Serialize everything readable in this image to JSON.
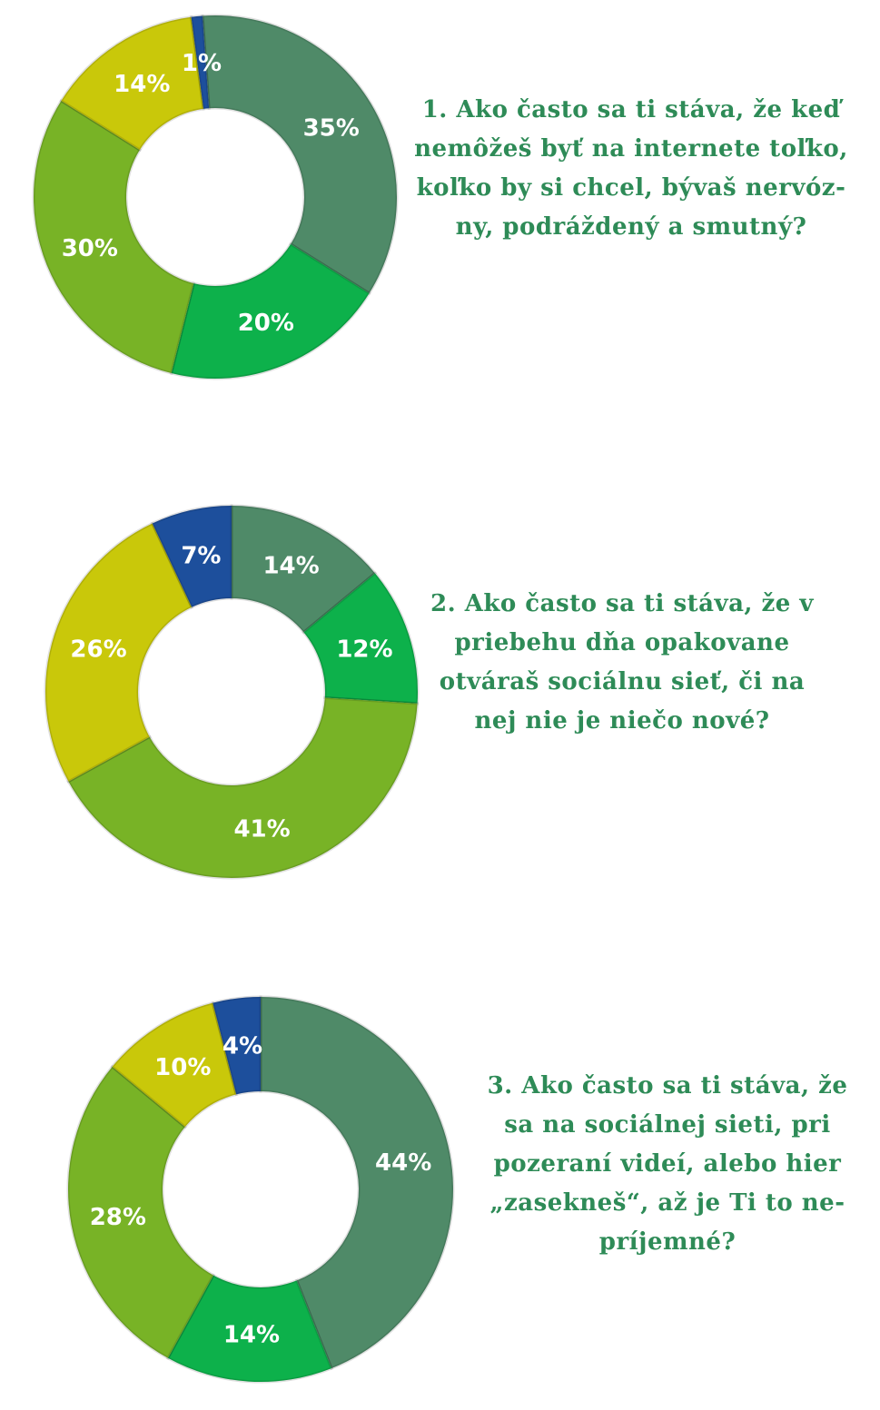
{
  "colors": {
    "dark_green": "#4f8a68",
    "green": "#0db14b",
    "lime": "#78b326",
    "yellow": "#c9c80a",
    "blue": "#1d4f9c",
    "question_text": "#2e8b57"
  },
  "chart_data": [
    {
      "type": "pie",
      "donut": true,
      "question_lines": [
        "1. Ako často sa ti stáva, že keď",
        "nemôžeš byť na internete toľko,",
        "koľko by si chcel, bývaš nervóz-",
        "ny, podráždený a smutný?"
      ],
      "slices": [
        {
          "value": 35,
          "label": "35%",
          "color": "#4f8a68"
        },
        {
          "value": 20,
          "label": "20%",
          "color": "#0db14b"
        },
        {
          "value": 30,
          "label": "30%",
          "color": "#78b326"
        },
        {
          "value": 14,
          "label": "14%",
          "color": "#c9c80a"
        },
        {
          "value": 1,
          "label": "1%",
          "color": "#1d4f9c"
        }
      ]
    },
    {
      "type": "pie",
      "donut": true,
      "question_lines": [
        "2. Ako často sa ti stáva, že v",
        "priebehu dňa opakovane",
        "otváraš sociálnu sieť, či na",
        "nej nie je niečo nové?"
      ],
      "slices": [
        {
          "value": 14,
          "label": "14%",
          "color": "#4f8a68"
        },
        {
          "value": 12,
          "label": "12%",
          "color": "#0db14b"
        },
        {
          "value": 41,
          "label": "41%",
          "color": "#78b326"
        },
        {
          "value": 26,
          "label": "26%",
          "color": "#c9c80a"
        },
        {
          "value": 7,
          "label": "7%",
          "color": "#1d4f9c"
        }
      ]
    },
    {
      "type": "pie",
      "donut": true,
      "question_lines": [
        "3. Ako často sa ti stáva, že",
        "sa na sociálnej sieti, pri",
        "pozeraní videí, alebo hier",
        "„zasekneš“, až je Ti to ne-",
        "príjemné?"
      ],
      "slices": [
        {
          "value": 44,
          "label": "44%",
          "color": "#4f8a68"
        },
        {
          "value": 14,
          "label": "14%",
          "color": "#0db14b"
        },
        {
          "value": 28,
          "label": "28%",
          "color": "#78b326"
        },
        {
          "value": 10,
          "label": "10%",
          "color": "#c9c80a"
        },
        {
          "value": 4,
          "label": "4%",
          "color": "#1d4f9c"
        }
      ]
    }
  ]
}
